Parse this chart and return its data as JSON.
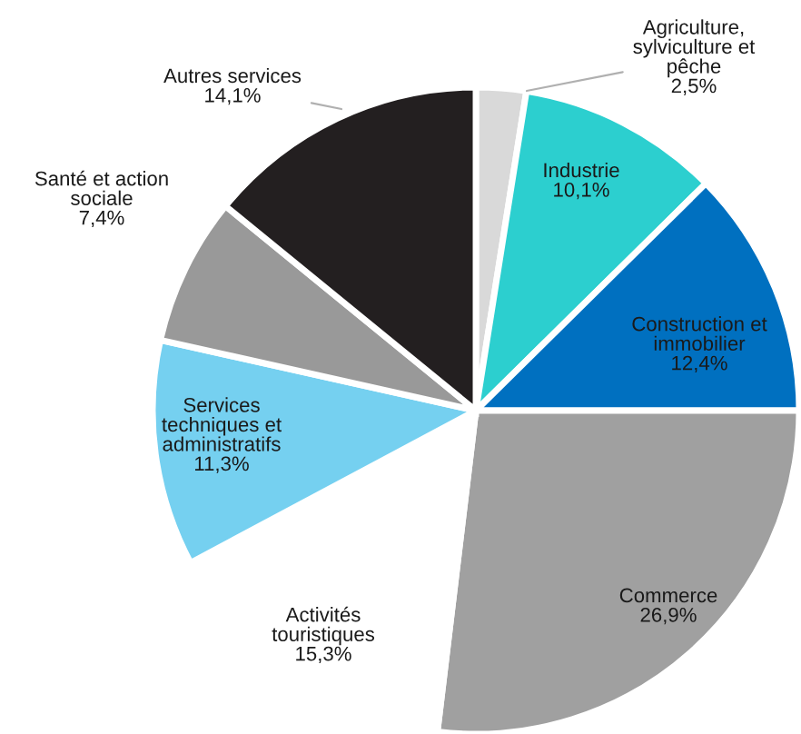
{
  "chart_data": {
    "type": "pie",
    "categories": [
      "Agriculture,\nsylviculture et\npêche",
      "Industrie",
      "Construction et\nimmobilier",
      "Commerce",
      "Activités\ntouristiques",
      "Services\ntechniques et\nadministratifs",
      "Santé et action\nsociale",
      "Autres services"
    ],
    "values": [
      2.5,
      10.1,
      12.4,
      26.9,
      15.3,
      11.3,
      7.4,
      14.1
    ],
    "value_labels": [
      "2,5%",
      "10,1%",
      "12,4%",
      "26,9%",
      "15,3%",
      "11,3%",
      "7,4%",
      "14,1%"
    ],
    "colors": [
      "#d9d9d9",
      "#2ccfcf",
      "#0070c0",
      "#a0a0a0",
      "#ffffff",
      "#75d0f0",
      "#999999",
      "#231f20"
    ]
  }
}
